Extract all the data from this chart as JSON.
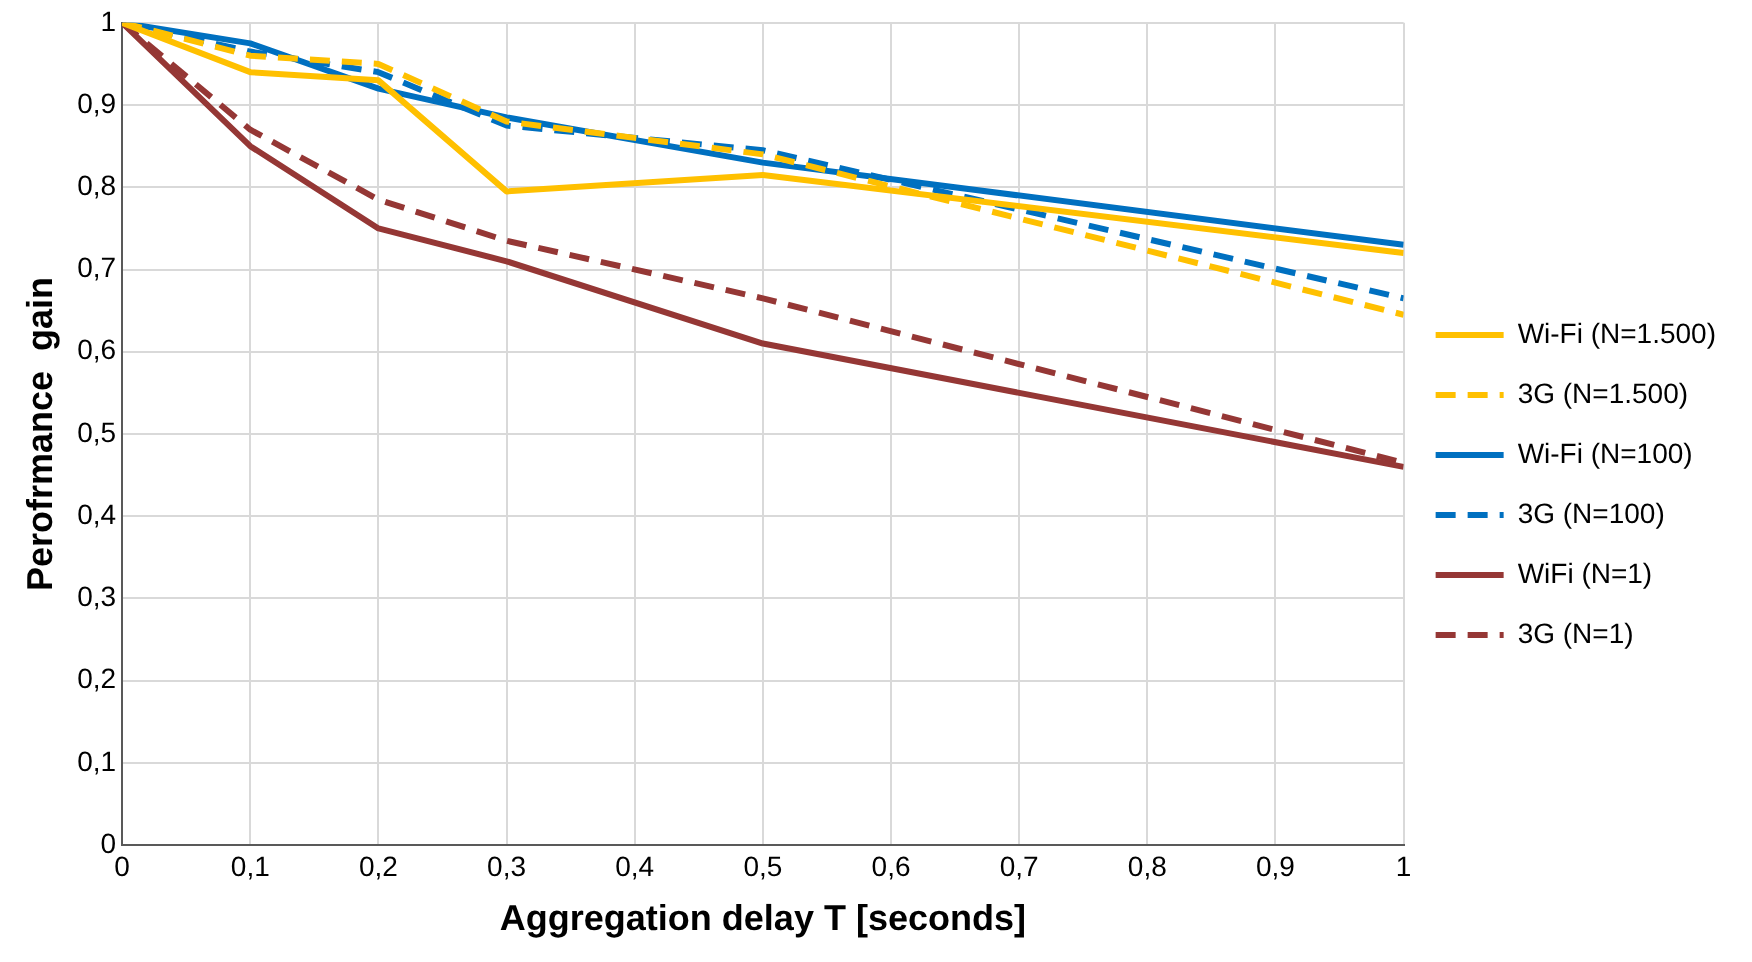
{
  "chart_data": {
    "type": "line",
    "xlabel": "Aggregation delay T [seconds]",
    "ylabel": "Perofrmance  gain",
    "x": [
      0,
      0.1,
      0.2,
      0.3,
      0.5,
      1
    ],
    "series": [
      {
        "name": "Wi-Fi (N=1.500)",
        "color": "#ffc000",
        "line_style": "solid",
        "values": [
          1,
          0.94,
          0.93,
          0.795,
          0.815,
          0.72
        ]
      },
      {
        "name": "3G (N=1.500)",
        "color": "#ffc000",
        "line_style": "dashed",
        "values": [
          1,
          0.96,
          0.95,
          0.88,
          0.84,
          0.645
        ]
      },
      {
        "name": "Wi-Fi (N=100)",
        "color": "#0070c0",
        "line_style": "solid",
        "values": [
          1,
          0.975,
          0.92,
          0.885,
          0.83,
          0.73
        ]
      },
      {
        "name": "3G (N=100)",
        "color": "#0070c0",
        "line_style": "dashed",
        "values": [
          1,
          0.965,
          0.94,
          0.875,
          0.845,
          0.665
        ]
      },
      {
        "name": "WiFi (N=1)",
        "color": "#953735",
        "line_style": "solid",
        "values": [
          1,
          0.85,
          0.75,
          0.71,
          0.61,
          0.46
        ]
      },
      {
        "name": "3G (N=1)",
        "color": "#953735",
        "line_style": "dashed",
        "values": [
          1,
          0.87,
          0.785,
          0.735,
          0.665,
          0.465
        ]
      }
    ],
    "xlim": [
      0,
      1
    ],
    "ylim": [
      0,
      1
    ],
    "xticks": [
      0,
      {
        "value": 0.1,
        "label": "0,1"
      },
      {
        "value": 0.2,
        "label": "0,2"
      },
      {
        "value": 0.3,
        "label": "0,3"
      },
      {
        "value": 0.4,
        "label": "0,4"
      },
      {
        "value": 0.5,
        "label": "0,5"
      },
      {
        "value": 0.6,
        "label": "0,6"
      },
      {
        "value": 0.7,
        "label": "0,7"
      },
      {
        "value": 0.8,
        "label": "0,8"
      },
      {
        "value": 0.9,
        "label": "0,9"
      },
      1
    ],
    "yticks": [
      0,
      {
        "value": 0.1,
        "label": "0,1"
      },
      {
        "value": 0.2,
        "label": "0,2"
      },
      {
        "value": 0.3,
        "label": "0,3"
      },
      {
        "value": 0.4,
        "label": "0,4"
      },
      {
        "value": 0.5,
        "label": "0,5"
      },
      {
        "value": 0.6,
        "label": "0,6"
      },
      {
        "value": 0.7,
        "label": "0,7"
      },
      {
        "value": 0.8,
        "label": "0,8"
      },
      {
        "value": 0.9,
        "label": "0,9"
      },
      1
    ],
    "grid": true,
    "legend": "right",
    "marker": "none"
  }
}
